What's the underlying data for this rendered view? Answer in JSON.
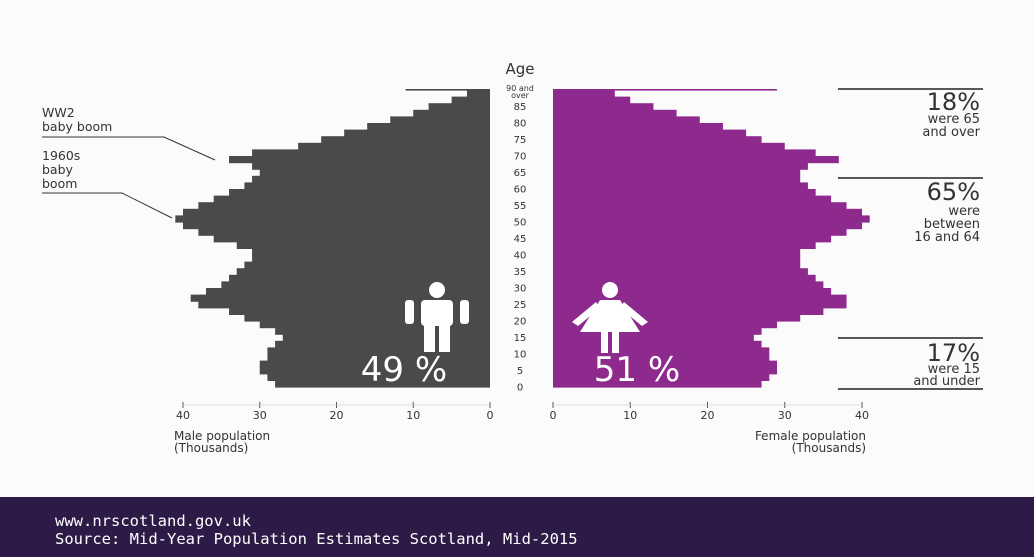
{
  "chart_data": {
    "type": "bar",
    "title": "",
    "age_axis_label": "Age",
    "age_ticks": [
      "0",
      "5",
      "10",
      "15",
      "20",
      "25",
      "30",
      "35",
      "40",
      "45",
      "50",
      "55",
      "60",
      "65",
      "70",
      "75",
      "80",
      "85"
    ],
    "age_top_label": [
      "90 and",
      "over"
    ],
    "male_axis_label": [
      "Male population",
      "(Thousands)"
    ],
    "female_axis_label": [
      "Female population",
      "(Thousands)"
    ],
    "x_ticks": [
      "40",
      "30",
      "20",
      "10",
      "0"
    ],
    "x_ticks_female": [
      "0",
      "10",
      "20",
      "30",
      "40"
    ],
    "xlim": [
      0,
      40
    ],
    "ylim": [
      0,
      90
    ],
    "series": [
      {
        "name": "Male",
        "color": "#4a4a4a",
        "values": [
          {
            "age": 0,
            "value": 28
          },
          {
            "age": 2,
            "value": 29
          },
          {
            "age": 4,
            "value": 30
          },
          {
            "age": 6,
            "value": 30
          },
          {
            "age": 8,
            "value": 29
          },
          {
            "age": 10,
            "value": 29
          },
          {
            "age": 12,
            "value": 28
          },
          {
            "age": 14,
            "value": 27
          },
          {
            "age": 16,
            "value": 28
          },
          {
            "age": 18,
            "value": 30
          },
          {
            "age": 20,
            "value": 32
          },
          {
            "age": 22,
            "value": 34
          },
          {
            "age": 24,
            "value": 38
          },
          {
            "age": 26,
            "value": 39
          },
          {
            "age": 28,
            "value": 37
          },
          {
            "age": 30,
            "value": 35
          },
          {
            "age": 32,
            "value": 34
          },
          {
            "age": 34,
            "value": 33
          },
          {
            "age": 36,
            "value": 32
          },
          {
            "age": 38,
            "value": 31
          },
          {
            "age": 40,
            "value": 31
          },
          {
            "age": 42,
            "value": 33
          },
          {
            "age": 44,
            "value": 36
          },
          {
            "age": 46,
            "value": 38
          },
          {
            "age": 48,
            "value": 40
          },
          {
            "age": 50,
            "value": 41
          },
          {
            "age": 52,
            "value": 40
          },
          {
            "age": 54,
            "value": 38
          },
          {
            "age": 56,
            "value": 36
          },
          {
            "age": 58,
            "value": 34
          },
          {
            "age": 60,
            "value": 32
          },
          {
            "age": 62,
            "value": 31
          },
          {
            "age": 64,
            "value": 30
          },
          {
            "age": 66,
            "value": 31
          },
          {
            "age": 68,
            "value": 34
          },
          {
            "age": 70,
            "value": 31
          },
          {
            "age": 72,
            "value": 25
          },
          {
            "age": 74,
            "value": 22
          },
          {
            "age": 76,
            "value": 19
          },
          {
            "age": 78,
            "value": 16
          },
          {
            "age": 80,
            "value": 13
          },
          {
            "age": 82,
            "value": 10
          },
          {
            "age": 84,
            "value": 8
          },
          {
            "age": 86,
            "value": 5
          },
          {
            "age": 88,
            "value": 3
          },
          {
            "age": 90,
            "value": 11
          }
        ]
      },
      {
        "name": "Female",
        "color": "#8e2a8e",
        "values": [
          {
            "age": 0,
            "value": 27
          },
          {
            "age": 2,
            "value": 28
          },
          {
            "age": 4,
            "value": 29
          },
          {
            "age": 6,
            "value": 29
          },
          {
            "age": 8,
            "value": 28
          },
          {
            "age": 10,
            "value": 28
          },
          {
            "age": 12,
            "value": 27
          },
          {
            "age": 14,
            "value": 26
          },
          {
            "age": 16,
            "value": 27
          },
          {
            "age": 18,
            "value": 29
          },
          {
            "age": 20,
            "value": 32
          },
          {
            "age": 22,
            "value": 35
          },
          {
            "age": 24,
            "value": 38
          },
          {
            "age": 26,
            "value": 38
          },
          {
            "age": 28,
            "value": 36
          },
          {
            "age": 30,
            "value": 35
          },
          {
            "age": 32,
            "value": 34
          },
          {
            "age": 34,
            "value": 33
          },
          {
            "age": 36,
            "value": 32
          },
          {
            "age": 38,
            "value": 32
          },
          {
            "age": 40,
            "value": 32
          },
          {
            "age": 42,
            "value": 34
          },
          {
            "age": 44,
            "value": 36
          },
          {
            "age": 46,
            "value": 38
          },
          {
            "age": 48,
            "value": 40
          },
          {
            "age": 50,
            "value": 41
          },
          {
            "age": 52,
            "value": 40
          },
          {
            "age": 54,
            "value": 38
          },
          {
            "age": 56,
            "value": 36
          },
          {
            "age": 58,
            "value": 34
          },
          {
            "age": 60,
            "value": 33
          },
          {
            "age": 62,
            "value": 32
          },
          {
            "age": 64,
            "value": 32
          },
          {
            "age": 66,
            "value": 33
          },
          {
            "age": 68,
            "value": 37
          },
          {
            "age": 70,
            "value": 34
          },
          {
            "age": 72,
            "value": 30
          },
          {
            "age": 74,
            "value": 27
          },
          {
            "age": 76,
            "value": 25
          },
          {
            "age": 78,
            "value": 22
          },
          {
            "age": 80,
            "value": 19
          },
          {
            "age": 82,
            "value": 16
          },
          {
            "age": 84,
            "value": 13
          },
          {
            "age": 86,
            "value": 10
          },
          {
            "age": 88,
            "value": 8
          },
          {
            "age": 90,
            "value": 29
          }
        ]
      }
    ],
    "male_share": "49 %",
    "female_share": "51 %",
    "annotations": [
      {
        "lines": [
          "WW2",
          "baby boom"
        ],
        "age": 72
      },
      {
        "lines": [
          "1960s",
          "baby",
          "boom"
        ],
        "age": 52
      }
    ],
    "stats": [
      {
        "big": "18%",
        "small": [
          "were 65",
          "and over"
        ],
        "age_from": 65,
        "age_to": 90
      },
      {
        "big": "65%",
        "small": [
          "were",
          "between",
          "16 and 64"
        ],
        "age_from": 16,
        "age_to": 64
      },
      {
        "big": "17%",
        "small": [
          "were 15",
          "and under"
        ],
        "age_from": 0,
        "age_to": 15
      }
    ]
  },
  "footer": {
    "url": "www.nrscotland.gov.uk",
    "source": "Source: Mid-Year Population Estimates Scotland, Mid-2015"
  },
  "icons": {
    "male": "male-figure-icon",
    "female": "female-figure-icon"
  }
}
